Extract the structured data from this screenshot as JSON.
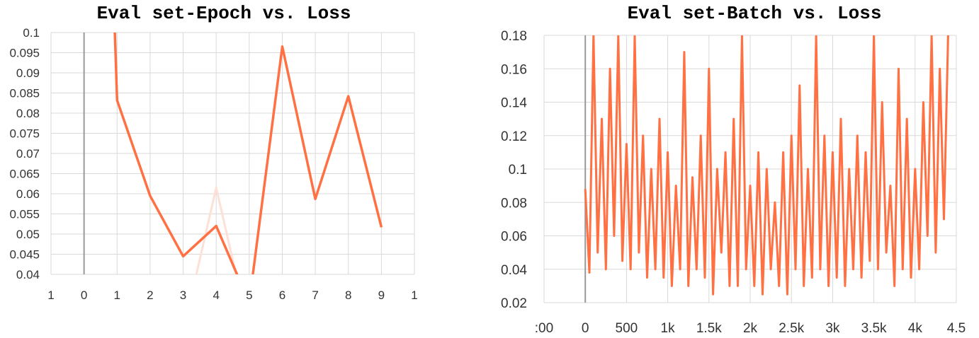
{
  "chart_data": [
    {
      "type": "line",
      "title": "Eval set-Epoch vs. Loss",
      "xlabel": "",
      "ylabel": "",
      "xlim": [
        -1,
        10
      ],
      "ylim": [
        0.04,
        0.1
      ],
      "x_tick_labels": [
        "1",
        "0",
        "1",
        "2",
        "3",
        "4",
        "5",
        "6",
        "7",
        "8",
        "9",
        "1"
      ],
      "y_tick_labels": [
        "0.1",
        "0.095",
        "0.09",
        "0.085",
        "0.08",
        "0.075",
        "0.07",
        "0.065",
        "0.06",
        "0.055",
        "0.05",
        "0.045",
        "0.04"
      ],
      "grid": true,
      "series": [
        {
          "role": "smoothed",
          "color": "#ff7043",
          "x": [
            0.9,
            1,
            2,
            3,
            4,
            5,
            6,
            7,
            8,
            9
          ],
          "y": [
            0.108,
            0.0832,
            0.0595,
            0.0445,
            0.052,
            0.033,
            0.0965,
            0.0587,
            0.0842,
            0.0517
          ]
        },
        {
          "role": "raw",
          "color": "#fde0d6",
          "x": [
            3.4,
            4,
            4.6
          ],
          "y": [
            0.04,
            0.0615,
            0.04
          ]
        }
      ]
    },
    {
      "type": "line",
      "title": "Eval set-Batch vs. Loss",
      "xlabel": "",
      "ylabel": "",
      "xlim": [
        -500,
        4500
      ],
      "ylim": [
        0.02,
        0.18
      ],
      "x_tick_labels": [
        ":00",
        "0",
        "500",
        "1k",
        "1.5k",
        "2k",
        "2.5k",
        "3k",
        "3.5k",
        "4k",
        "4.5"
      ],
      "y_tick_labels": [
        "0.18",
        "0.16",
        "0.14",
        "0.12",
        "0.1",
        "0.08",
        "0.06",
        "0.04",
        "0.02"
      ],
      "grid": true,
      "series": [
        {
          "role": "smoothed",
          "color": "#ff7043",
          "x": [
            0,
            50,
            100,
            150,
            200,
            250,
            300,
            350,
            400,
            450,
            500,
            550,
            600,
            650,
            700,
            750,
            800,
            850,
            900,
            950,
            1000,
            1050,
            1100,
            1150,
            1200,
            1250,
            1300,
            1350,
            1400,
            1450,
            1500,
            1550,
            1600,
            1650,
            1700,
            1750,
            1800,
            1850,
            1900,
            1950,
            2000,
            2050,
            2100,
            2150,
            2200,
            2250,
            2300,
            2350,
            2400,
            2450,
            2500,
            2550,
            2600,
            2650,
            2700,
            2750,
            2800,
            2850,
            2900,
            2950,
            3000,
            3050,
            3100,
            3150,
            3200,
            3250,
            3300,
            3350,
            3400,
            3450,
            3500,
            3550,
            3600,
            3650,
            3700,
            3750,
            3800,
            3850,
            3900,
            3950,
            4000,
            4050,
            4100,
            4150,
            4200,
            4250,
            4300,
            4350,
            4400
          ],
          "y": [
            0.088,
            0.038,
            0.18,
            0.05,
            0.13,
            0.04,
            0.16,
            0.06,
            0.18,
            0.045,
            0.115,
            0.04,
            0.18,
            0.05,
            0.12,
            0.035,
            0.1,
            0.04,
            0.13,
            0.035,
            0.11,
            0.03,
            0.09,
            0.04,
            0.17,
            0.03,
            0.095,
            0.04,
            0.12,
            0.035,
            0.16,
            0.025,
            0.1,
            0.05,
            0.11,
            0.03,
            0.13,
            0.03,
            0.18,
            0.04,
            0.09,
            0.03,
            0.11,
            0.025,
            0.1,
            0.04,
            0.08,
            0.03,
            0.11,
            0.025,
            0.12,
            0.04,
            0.15,
            0.03,
            0.1,
            0.035,
            0.18,
            0.04,
            0.12,
            0.03,
            0.11,
            0.035,
            0.13,
            0.03,
            0.1,
            0.04,
            0.12,
            0.035,
            0.11,
            0.045,
            0.18,
            0.04,
            0.14,
            0.05,
            0.09,
            0.03,
            0.16,
            0.04,
            0.13,
            0.035,
            0.1,
            0.04,
            0.14,
            0.06,
            0.18,
            0.05,
            0.16,
            0.07,
            0.18
          ]
        }
      ]
    }
  ]
}
